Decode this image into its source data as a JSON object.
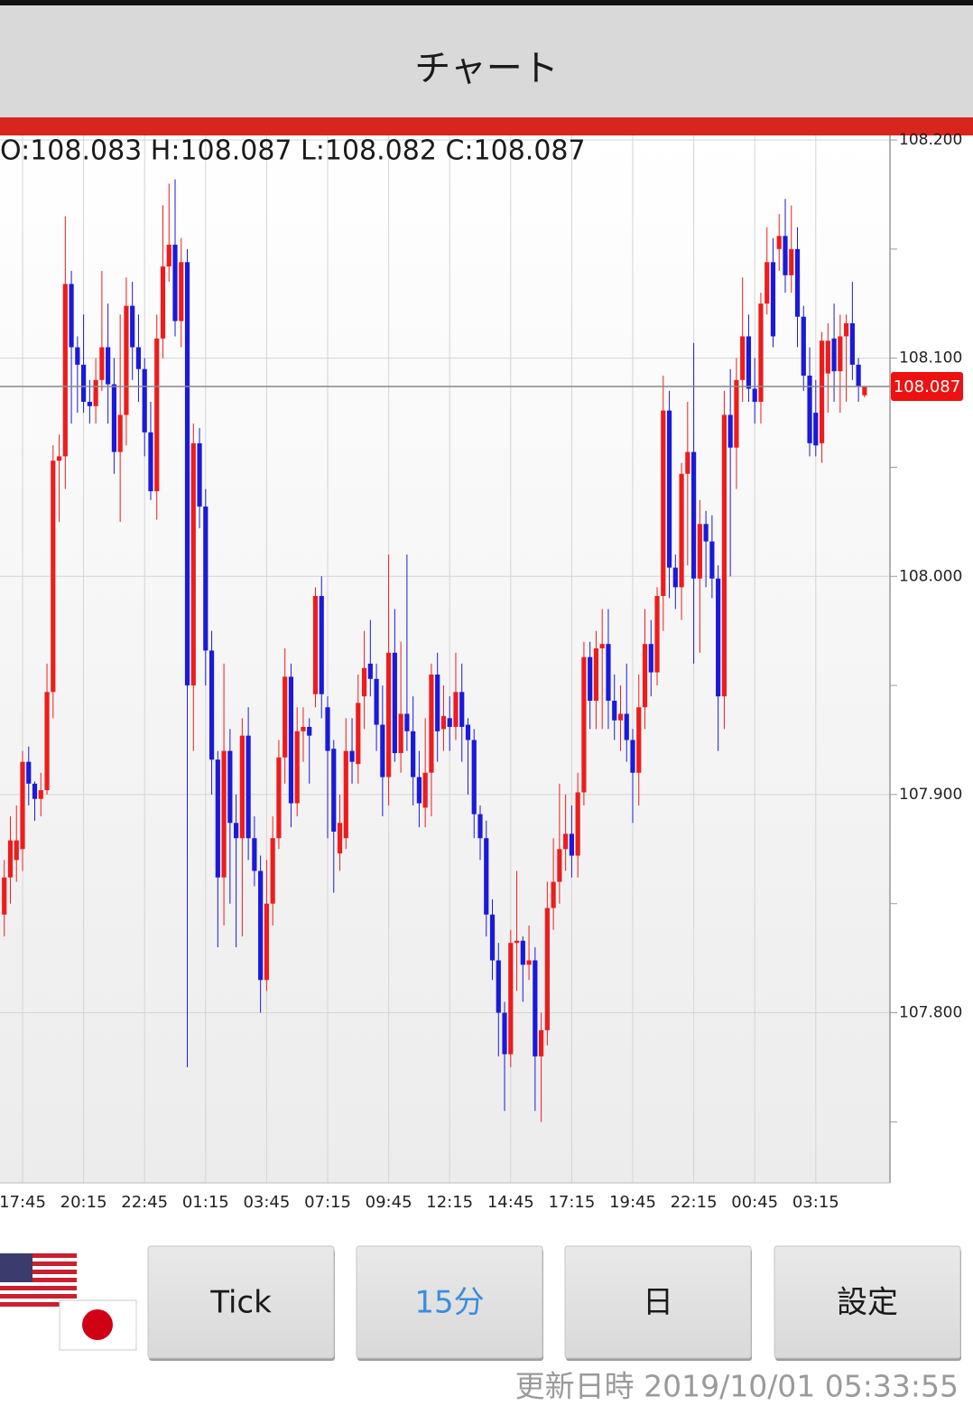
{
  "header": {
    "title": "チャート"
  },
  "chart_data": {
    "type": "candlestick",
    "ohlc_text": "O:108.083 H:108.087 L:108.082 C:108.087",
    "up_color": "#ee1c1c",
    "down_color": "#1a1adb",
    "ylim": [
      107.722,
      108.2
    ],
    "yticks": [
      {
        "value": 108.2,
        "label": "108.200"
      },
      {
        "value": 108.1,
        "label": "108.100"
      },
      {
        "value": 108.0,
        "label": "108.000"
      },
      {
        "value": 107.9,
        "label": "107.900"
      },
      {
        "value": 107.8,
        "label": "107.800"
      }
    ],
    "yminor_ticks": [
      108.15,
      108.05,
      107.95,
      107.85,
      107.75
    ],
    "last_price": {
      "value": 108.087,
      "label": "108.087"
    },
    "categories": [
      null,
      null,
      null,
      "17:45",
      null,
      null,
      null,
      null,
      null,
      null,
      null,
      null,
      null,
      "20:15",
      null,
      null,
      null,
      null,
      null,
      null,
      null,
      null,
      null,
      "22:45",
      null,
      null,
      null,
      null,
      null,
      null,
      null,
      null,
      null,
      "01:15",
      null,
      null,
      null,
      null,
      null,
      null,
      null,
      null,
      null,
      "03:45",
      null,
      null,
      null,
      null,
      null,
      null,
      null,
      null,
      null,
      "07:15",
      null,
      null,
      null,
      null,
      null,
      null,
      null,
      null,
      null,
      "09:45",
      null,
      null,
      null,
      null,
      null,
      null,
      null,
      null,
      null,
      "12:15",
      null,
      null,
      null,
      null,
      null,
      null,
      null,
      null,
      null,
      "14:45",
      null,
      null,
      null,
      null,
      null,
      null,
      null,
      null,
      null,
      "17:15",
      null,
      null,
      null,
      null,
      null,
      null,
      null,
      null,
      null,
      "19:45",
      null,
      null,
      null,
      null,
      null,
      null,
      null,
      null,
      null,
      "22:15",
      null,
      null,
      null,
      null,
      null,
      null,
      null,
      null,
      null,
      "00:45",
      null,
      null,
      null,
      null,
      null,
      null,
      null,
      null,
      null,
      "03:15",
      null,
      null,
      null,
      null,
      null,
      null,
      null,
      null
    ],
    "candles": [
      [
        107.845,
        107.87,
        107.835,
        107.862
      ],
      [
        107.862,
        107.89,
        107.85,
        107.879
      ],
      [
        107.87,
        107.895,
        107.86,
        107.879
      ],
      [
        107.875,
        107.92,
        107.865,
        107.915
      ],
      [
        107.915,
        107.922,
        107.895,
        107.905
      ],
      [
        107.905,
        107.906,
        107.888,
        107.898
      ],
      [
        107.898,
        107.91,
        107.89,
        107.902
      ],
      [
        107.902,
        107.96,
        107.9,
        107.947
      ],
      [
        107.947,
        108.06,
        107.935,
        108.053
      ],
      [
        108.053,
        108.065,
        108.025,
        108.055
      ],
      [
        108.055,
        108.165,
        108.04,
        108.134
      ],
      [
        108.134,
        108.14,
        108.07,
        108.105
      ],
      [
        108.105,
        108.11,
        108.075,
        108.097
      ],
      [
        108.097,
        108.12,
        108.075,
        108.08
      ],
      [
        108.08,
        108.09,
        108.07,
        108.078
      ],
      [
        108.078,
        108.1,
        108.07,
        108.09
      ],
      [
        108.09,
        108.14,
        108.085,
        108.105
      ],
      [
        108.105,
        108.125,
        108.07,
        108.088
      ],
      [
        108.088,
        108.1,
        108.047,
        108.057
      ],
      [
        108.057,
        108.12,
        108.025,
        108.074
      ],
      [
        108.074,
        108.137,
        108.06,
        108.124
      ],
      [
        108.124,
        108.135,
        108.09,
        108.105
      ],
      [
        108.105,
        108.12,
        108.08,
        108.095
      ],
      [
        108.095,
        108.1,
        108.055,
        108.066
      ],
      [
        108.066,
        108.08,
        108.035,
        108.039
      ],
      [
        108.039,
        108.12,
        108.026,
        108.109
      ],
      [
        108.109,
        108.17,
        108.1,
        108.142
      ],
      [
        108.142,
        108.18,
        108.135,
        108.152
      ],
      [
        108.152,
        108.182,
        108.11,
        108.117
      ],
      [
        108.117,
        108.155,
        108.105,
        108.144
      ],
      [
        108.144,
        108.15,
        107.775,
        107.95
      ],
      [
        107.95,
        108.07,
        107.92,
        108.061
      ],
      [
        108.061,
        108.068,
        108.022,
        108.032
      ],
      [
        108.032,
        108.04,
        107.95,
        107.966
      ],
      [
        107.966,
        107.975,
        107.9,
        107.916
      ],
      [
        107.916,
        107.92,
        107.83,
        107.862
      ],
      [
        107.862,
        107.96,
        107.84,
        107.92
      ],
      [
        107.92,
        107.93,
        107.85,
        107.887
      ],
      [
        107.887,
        107.9,
        107.83,
        107.88
      ],
      [
        107.88,
        107.935,
        107.835,
        107.927
      ],
      [
        107.927,
        107.94,
        107.87,
        107.88
      ],
      [
        107.88,
        107.89,
        107.858,
        107.865
      ],
      [
        107.865,
        107.872,
        107.8,
        107.815
      ],
      [
        107.815,
        107.87,
        107.81,
        107.85
      ],
      [
        107.85,
        107.89,
        107.84,
        107.88
      ],
      [
        107.88,
        107.925,
        107.875,
        107.917
      ],
      [
        107.917,
        107.967,
        107.905,
        107.954
      ],
      [
        107.954,
        107.96,
        107.885,
        107.896
      ],
      [
        107.896,
        107.94,
        107.89,
        107.929
      ],
      [
        107.929,
        107.94,
        107.915,
        107.931
      ],
      [
        107.931,
        107.935,
        107.905,
        107.927
      ],
      [
        107.946,
        107.995,
        107.94,
        107.991
      ],
      [
        107.991,
        108.0,
        107.935,
        107.946
      ],
      [
        107.94,
        107.945,
        107.88,
        107.92
      ],
      [
        107.921,
        107.925,
        107.855,
        107.883
      ],
      [
        107.873,
        107.9,
        107.865,
        107.887
      ],
      [
        107.88,
        107.935,
        107.875,
        107.92
      ],
      [
        107.92,
        107.935,
        107.905,
        107.915
      ],
      [
        107.914,
        107.955,
        107.905,
        107.942
      ],
      [
        107.945,
        107.975,
        107.93,
        107.958
      ],
      [
        107.96,
        107.98,
        107.945,
        107.953
      ],
      [
        107.953,
        107.96,
        107.92,
        107.932
      ],
      [
        107.932,
        107.95,
        107.89,
        107.908
      ],
      [
        107.908,
        108.01,
        107.895,
        107.965
      ],
      [
        107.965,
        107.985,
        107.915,
        107.919
      ],
      [
        107.919,
        107.97,
        107.91,
        107.937
      ],
      [
        107.937,
        108.01,
        107.92,
        107.929
      ],
      [
        107.929,
        107.945,
        107.895,
        107.908
      ],
      [
        107.908,
        107.92,
        107.885,
        107.896
      ],
      [
        107.894,
        107.935,
        107.885,
        107.91
      ],
      [
        107.91,
        107.96,
        107.89,
        107.955
      ],
      [
        107.955,
        107.965,
        107.915,
        107.929
      ],
      [
        107.93,
        107.95,
        107.92,
        107.936
      ],
      [
        107.935,
        107.945,
        107.92,
        107.931
      ],
      [
        107.931,
        107.965,
        107.925,
        107.947
      ],
      [
        107.947,
        107.96,
        107.915,
        107.931
      ],
      [
        107.932,
        107.935,
        107.9,
        107.925
      ],
      [
        107.925,
        107.93,
        107.88,
        107.891
      ],
      [
        107.891,
        107.895,
        107.87,
        107.88
      ],
      [
        107.88,
        107.888,
        107.835,
        107.845
      ],
      [
        107.845,
        107.852,
        107.815,
        107.824
      ],
      [
        107.824,
        107.832,
        107.78,
        107.8
      ],
      [
        107.8,
        107.805,
        107.755,
        107.781
      ],
      [
        107.781,
        107.838,
        107.775,
        107.832
      ],
      [
        107.832,
        107.865,
        107.81,
        107.833
      ],
      [
        107.833,
        107.835,
        107.805,
        107.822
      ],
      [
        107.822,
        107.84,
        107.815,
        107.824
      ],
      [
        107.824,
        107.83,
        107.755,
        107.78
      ],
      [
        107.78,
        107.8,
        107.75,
        107.792
      ],
      [
        107.792,
        107.86,
        107.785,
        107.848
      ],
      [
        107.848,
        107.88,
        107.838,
        107.86
      ],
      [
        107.86,
        107.905,
        107.85,
        107.875
      ],
      [
        107.875,
        107.9,
        107.865,
        107.882
      ],
      [
        107.882,
        107.895,
        107.862,
        107.872
      ],
      [
        107.872,
        107.91,
        107.862,
        107.901
      ],
      [
        107.901,
        107.97,
        107.895,
        107.963
      ],
      [
        107.963,
        107.97,
        107.93,
        107.943
      ],
      [
        107.943,
        107.975,
        107.93,
        107.967
      ],
      [
        107.967,
        107.985,
        107.93,
        107.969
      ],
      [
        107.969,
        107.985,
        107.93,
        107.943
      ],
      [
        107.943,
        107.955,
        107.925,
        107.934
      ],
      [
        107.934,
        107.95,
        107.92,
        107.937
      ],
      [
        107.937,
        107.96,
        107.915,
        107.925
      ],
      [
        107.925,
        107.93,
        107.887,
        107.91
      ],
      [
        107.91,
        107.955,
        107.895,
        107.94
      ],
      [
        107.94,
        107.985,
        107.93,
        107.969
      ],
      [
        107.969,
        107.98,
        107.945,
        107.956
      ],
      [
        107.956,
        107.995,
        107.95,
        107.991
      ],
      [
        107.991,
        108.092,
        107.975,
        108.076
      ],
      [
        108.076,
        108.085,
        107.99,
        108.004
      ],
      [
        108.004,
        108.01,
        107.985,
        107.995
      ],
      [
        107.995,
        108.052,
        107.98,
        108.047
      ],
      [
        108.047,
        108.08,
        108.005,
        108.057
      ],
      [
        108.057,
        108.107,
        107.96,
        107.999
      ],
      [
        107.999,
        108.035,
        107.965,
        108.024
      ],
      [
        108.024,
        108.03,
        107.995,
        108.016
      ],
      [
        108.016,
        108.028,
        107.99,
        107.999
      ],
      [
        107.999,
        108.005,
        107.92,
        107.945
      ],
      [
        107.945,
        108.085,
        107.93,
        108.074
      ],
      [
        108.074,
        108.095,
        108.0,
        108.059
      ],
      [
        108.059,
        108.1,
        108.04,
        108.09
      ],
      [
        108.09,
        108.137,
        108.08,
        108.11
      ],
      [
        108.11,
        108.12,
        108.08,
        108.086
      ],
      [
        108.086,
        108.1,
        108.07,
        108.08
      ],
      [
        108.08,
        108.13,
        108.07,
        108.125
      ],
      [
        108.125,
        108.16,
        108.12,
        108.144
      ],
      [
        108.144,
        108.155,
        108.105,
        108.11
      ],
      [
        108.15,
        108.166,
        108.14,
        108.156
      ],
      [
        108.156,
        108.173,
        108.13,
        108.138
      ],
      [
        108.138,
        108.17,
        108.13,
        108.15
      ],
      [
        108.15,
        108.16,
        108.105,
        108.119
      ],
      [
        108.119,
        108.124,
        108.085,
        108.092
      ],
      [
        108.092,
        108.105,
        108.055,
        108.061
      ],
      [
        108.075,
        108.09,
        108.055,
        108.06
      ],
      [
        108.061,
        108.112,
        108.052,
        108.108
      ],
      [
        108.093,
        108.116,
        108.075,
        108.108
      ],
      [
        108.109,
        108.125,
        108.08,
        108.094
      ],
      [
        108.094,
        108.12,
        108.075,
        108.11
      ],
      [
        108.11,
        108.12,
        108.08,
        108.116
      ],
      [
        108.116,
        108.135,
        108.09,
        108.097
      ],
      [
        108.097,
        108.1,
        108.08,
        108.087
      ],
      [
        108.083,
        108.087,
        108.082,
        108.087
      ]
    ]
  },
  "buttons": [
    {
      "label": "Tick",
      "selected": false
    },
    {
      "label": "15分",
      "selected": true
    },
    {
      "label": "日",
      "selected": false
    },
    {
      "label": "設定",
      "selected": false
    }
  ],
  "footer": {
    "updated": "更新日時 2019/10/01 05:33:55"
  }
}
